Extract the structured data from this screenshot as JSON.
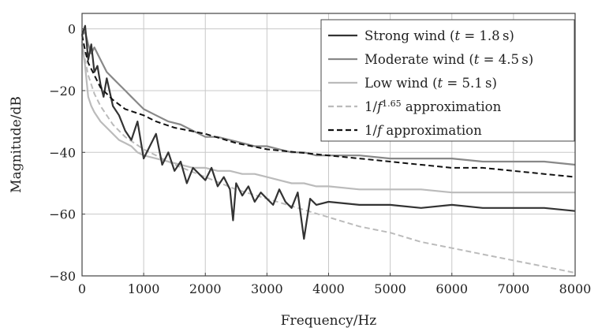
{
  "chart_data": {
    "type": "line",
    "xlabel": "Frequency/Hz",
    "ylabel": "Magnitude/dB",
    "xlim": [
      0,
      8000
    ],
    "ylim": [
      -80,
      5
    ],
    "x_ticks": [
      0,
      1000,
      2000,
      3000,
      4000,
      5000,
      6000,
      7000,
      8000
    ],
    "y_ticks": [
      0,
      -20,
      -40,
      -60,
      -80
    ],
    "x_tick_labels": [
      "0",
      "1000",
      "2000",
      "3000",
      "4000",
      "5000",
      "6000",
      "7000",
      "8000"
    ],
    "y_tick_labels": [
      "0",
      "−20",
      "−40",
      "−60",
      "−80"
    ],
    "grid": true,
    "legend_position": "top-right",
    "series": [
      {
        "name": "Strong wind (t = 1.8 s)",
        "legend_parts": [
          "Strong wind (",
          "t",
          " = 1.8 s)"
        ],
        "color": "#333333",
        "style": "solid",
        "x": [
          0,
          50,
          100,
          150,
          200,
          250,
          300,
          350,
          400,
          500,
          600,
          700,
          800,
          900,
          1000,
          1100,
          1200,
          1300,
          1400,
          1500,
          1600,
          1700,
          1800,
          1900,
          2000,
          2100,
          2200,
          2300,
          2400,
          2450,
          2500,
          2600,
          2700,
          2800,
          2900,
          3000,
          3100,
          3200,
          3300,
          3400,
          3500,
          3600,
          3700,
          3800,
          4000,
          4500,
          5000,
          5500,
          6000,
          6500,
          7000,
          7500,
          8000
        ],
        "values": [
          -2,
          1,
          -10,
          -5,
          -14,
          -12,
          -18,
          -22,
          -16,
          -25,
          -28,
          -33,
          -36,
          -30,
          -42,
          -38,
          -34,
          -44,
          -40,
          -46,
          -43,
          -50,
          -45,
          -47,
          -49,
          -45,
          -51,
          -48,
          -52,
          -62,
          -50,
          -54,
          -51,
          -56,
          -53,
          -55,
          -57,
          -52,
          -56,
          -58,
          -53,
          -68,
          -55,
          -57,
          -56,
          -57,
          -57,
          -58,
          -57,
          -58,
          -58,
          -58,
          -59
        ]
      },
      {
        "name": "Moderate wind (t = 4.5 s)",
        "legend_parts": [
          "Moderate wind (",
          "t",
          " = 4.5 s)"
        ],
        "color": "#888888",
        "style": "solid",
        "x": [
          0,
          50,
          100,
          150,
          200,
          300,
          400,
          500,
          600,
          700,
          800,
          900,
          1000,
          1200,
          1400,
          1600,
          1800,
          2000,
          2200,
          2400,
          2600,
          2800,
          3000,
          3200,
          3400,
          3600,
          3800,
          4000,
          4500,
          5000,
          5500,
          6000,
          6500,
          7000,
          7500,
          8000
        ],
        "values": [
          -2,
          -1,
          -5,
          -8,
          -6,
          -10,
          -14,
          -16,
          -18,
          -20,
          -22,
          -24,
          -26,
          -28,
          -30,
          -31,
          -33,
          -35,
          -35,
          -36,
          -37,
          -38,
          -38,
          -39,
          -40,
          -40,
          -41,
          -41,
          -41,
          -42,
          -42,
          -42,
          -43,
          -43,
          -43,
          -44
        ]
      },
      {
        "name": "Low wind (t = 5.1 s)",
        "legend_parts": [
          "Low wind (",
          "t",
          " = 5.1 s)"
        ],
        "color": "#bbbbbb",
        "style": "solid",
        "x": [
          0,
          50,
          100,
          150,
          200,
          300,
          400,
          500,
          600,
          700,
          800,
          900,
          1000,
          1200,
          1400,
          1600,
          1800,
          2000,
          2200,
          2400,
          2600,
          2800,
          3000,
          3200,
          3400,
          3600,
          3800,
          4000,
          4500,
          5000,
          5500,
          6000,
          6500,
          7000,
          7500,
          8000
        ],
        "values": [
          -5,
          -12,
          -22,
          -25,
          -27,
          -30,
          -32,
          -34,
          -36,
          -37,
          -38,
          -40,
          -41,
          -42,
          -43,
          -44,
          -45,
          -45,
          -46,
          -46,
          -47,
          -47,
          -48,
          -49,
          -50,
          -50,
          -51,
          -51,
          -52,
          -52,
          -52,
          -53,
          -53,
          -53,
          -53,
          -53
        ]
      },
      {
        "name": "1/f^1.65 approximation",
        "legend_parts": [
          "1/",
          "f",
          "1.65",
          " approximation"
        ],
        "color": "#bbbbbb",
        "style": "dashed",
        "x": [
          0,
          50,
          100,
          200,
          300,
          400,
          500,
          700,
          1000,
          1200,
          1500,
          2000,
          2500,
          3000,
          3500,
          4000,
          4500,
          5000,
          5500,
          6000,
          6500,
          7000,
          7500,
          8000
        ],
        "values": [
          -4,
          -10,
          -15,
          -21,
          -25,
          -28,
          -31,
          -35,
          -39,
          -41,
          -44,
          -48,
          -52,
          -55,
          -58,
          -61,
          -64,
          -66,
          -69,
          -71,
          -73,
          -75,
          -77,
          -79
        ]
      },
      {
        "name": "1/f approximation",
        "legend_parts": [
          "1/",
          "f",
          " approximation"
        ],
        "color": "#111111",
        "style": "dashed",
        "x": [
          0,
          50,
          100,
          200,
          300,
          400,
          500,
          700,
          1000,
          1200,
          1500,
          2000,
          2500,
          3000,
          3500,
          4000,
          4500,
          5000,
          5500,
          6000,
          6500,
          7000,
          7500,
          8000
        ],
        "values": [
          -2,
          -7,
          -11,
          -15,
          -19,
          -21,
          -23,
          -26,
          -28,
          -30,
          -32,
          -34,
          -37,
          -39,
          -40,
          -41,
          -42,
          -43,
          -44,
          -45,
          -45,
          -46,
          -47,
          -48
        ]
      }
    ]
  }
}
